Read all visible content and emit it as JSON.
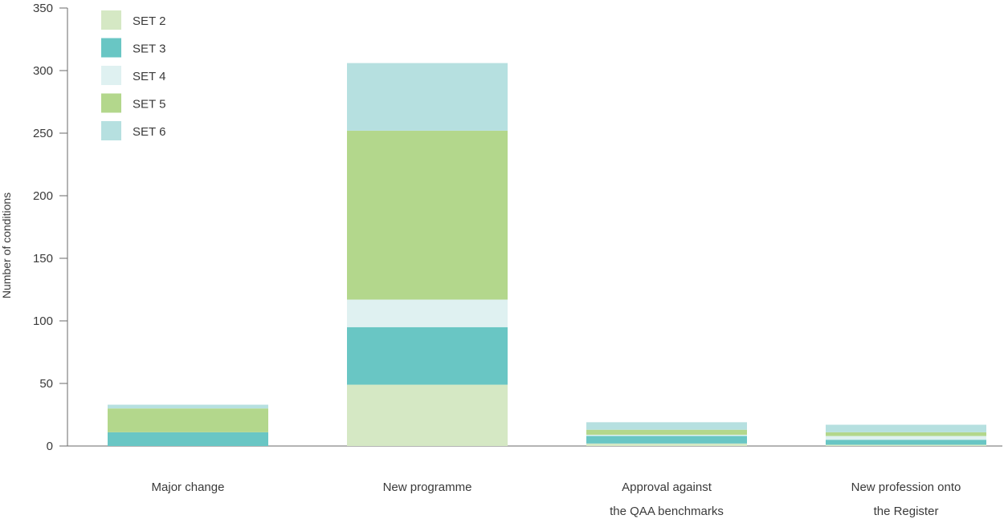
{
  "chart_data": {
    "type": "bar",
    "stacked": true,
    "title": "",
    "xlabel": "",
    "ylabel": "Number of conditions",
    "ylim": [
      0,
      350
    ],
    "yticks": [
      0,
      50,
      100,
      150,
      200,
      250,
      300,
      350
    ],
    "grid": false,
    "legend_position": "top-left",
    "categories": [
      [
        "Major change"
      ],
      [
        "New programme"
      ],
      [
        "Approval against",
        "the QAA benchmarks"
      ],
      [
        "New profession onto",
        "the Register"
      ]
    ],
    "series": [
      {
        "name": "SET 2",
        "color": "#d5e8c4",
        "values": [
          0,
          49,
          2,
          1
        ]
      },
      {
        "name": "SET 3",
        "color": "#69c6c4",
        "values": [
          11,
          46,
          6,
          4
        ]
      },
      {
        "name": "SET 4",
        "color": "#dff1f1",
        "values": [
          0,
          22,
          1,
          3
        ]
      },
      {
        "name": "SET 5",
        "color": "#b3d78c",
        "values": [
          19,
          135,
          4,
          3
        ]
      },
      {
        "name": "SET 6",
        "color": "#b6e0e0",
        "values": [
          3,
          54,
          6,
          6
        ]
      }
    ]
  }
}
